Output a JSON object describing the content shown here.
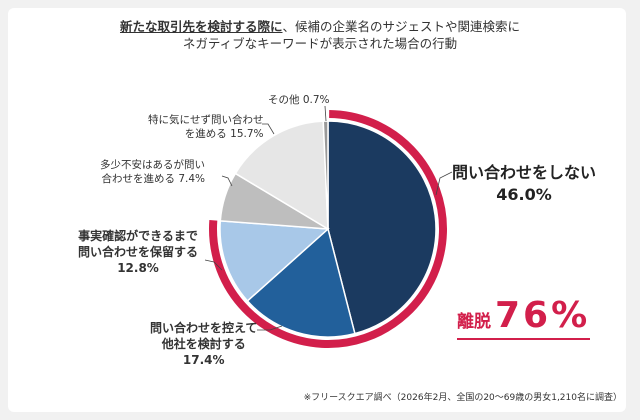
{
  "chart_data": {
    "type": "pie",
    "title_underlined": "新たな取引先を検討する際に",
    "title_rest": "、候補の企業名のサジェストや関連検索に",
    "title_line2": "ネガティブなキーワードが表示された場合の行動",
    "start": "top",
    "direction": "clockwise",
    "slices": [
      {
        "label": "問い合わせをしない",
        "value": 46.0,
        "value_label": "46.0%",
        "color": "#1b3a60"
      },
      {
        "label": "問い合わせを控えて他社を検討する",
        "value": 17.4,
        "value_label": "17.4%",
        "color": "#22609b"
      },
      {
        "label": "事実確認ができるまで問い合わせを保留する",
        "value": 12.8,
        "value_label": "12.8%",
        "color": "#a8c8e8"
      },
      {
        "label": "多少不安はあるが問い合わせを進める",
        "value": 7.4,
        "value_label": "7.4%",
        "color": "#bebebe"
      },
      {
        "label": "特に気にせず問い合わせを進める",
        "value": 15.7,
        "value_label": "15.7%",
        "color": "#e6e6e6"
      },
      {
        "label": "その他",
        "value": 0.7,
        "value_label": "0.7%",
        "color": "#9a9a9a"
      }
    ],
    "highlight": {
      "label": "離脱",
      "value": 76,
      "value_label": "76%",
      "color": "#d21f4b",
      "covers_slices": 3
    },
    "footnote": "※フリースクエア調べ（2026年2月、全国の20～69歳の男女1,210名に調査）"
  },
  "labels": {
    "s0a": "問い合わせをしない",
    "s0b": "46.0%",
    "s1a": "問い合わせを控えて",
    "s1b": "他社を検討する",
    "s1c": "17.4%",
    "s2a": "事実確認ができるまで",
    "s2b": "問い合わせを保留する",
    "s2c": "12.8%",
    "s3a": "多少不安はあるが問い",
    "s3b": "合わせを進める 7.4%",
    "s4a": "特に気にせず問い合わせ",
    "s4b": "を進める 15.7%",
    "s5": "その他 0.7%",
    "ridatsu_word": "離脱",
    "ridatsu_pct": "76%"
  }
}
